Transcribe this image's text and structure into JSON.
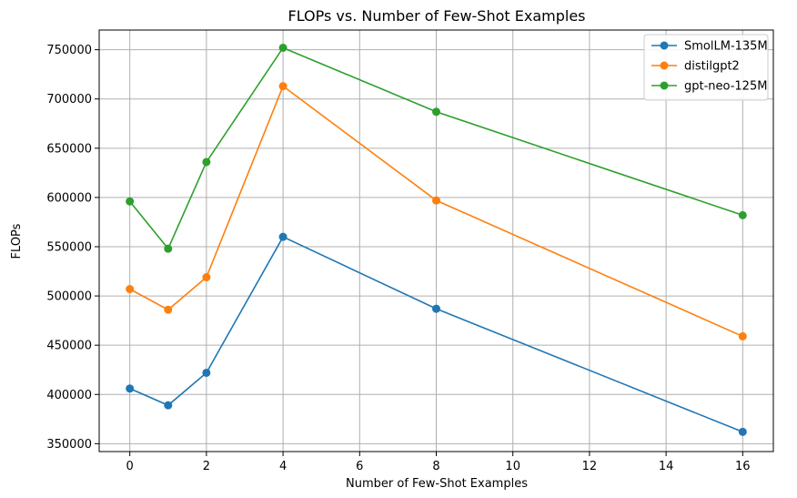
{
  "chart_data": {
    "type": "line",
    "title": "FLOPs vs. Number of Few-Shot Examples",
    "xlabel": "Number of Few-Shot Examples",
    "ylabel": "FLOPs",
    "x": [
      0,
      1,
      2,
      4,
      8,
      16
    ],
    "xlim": [
      -0.8,
      16.8
    ],
    "ylim": [
      342000,
      770000
    ],
    "xticks": [
      0,
      2,
      4,
      6,
      8,
      10,
      12,
      14,
      16
    ],
    "yticks": [
      350000,
      400000,
      450000,
      500000,
      550000,
      600000,
      650000,
      700000,
      750000
    ],
    "grid": true,
    "legend_position": "top-right",
    "series": [
      {
        "name": "SmolLM-135M",
        "color": "#1f77b4",
        "values": [
          406000,
          389000,
          422000,
          560000,
          487000,
          362000
        ]
      },
      {
        "name": "distilgpt2",
        "color": "#ff7f0e",
        "values": [
          507000,
          486000,
          519000,
          713000,
          597000,
          459000
        ]
      },
      {
        "name": "gpt-neo-125M",
        "color": "#2ca02c",
        "values": [
          596000,
          548000,
          636000,
          752000,
          687000,
          582000
        ]
      }
    ]
  }
}
